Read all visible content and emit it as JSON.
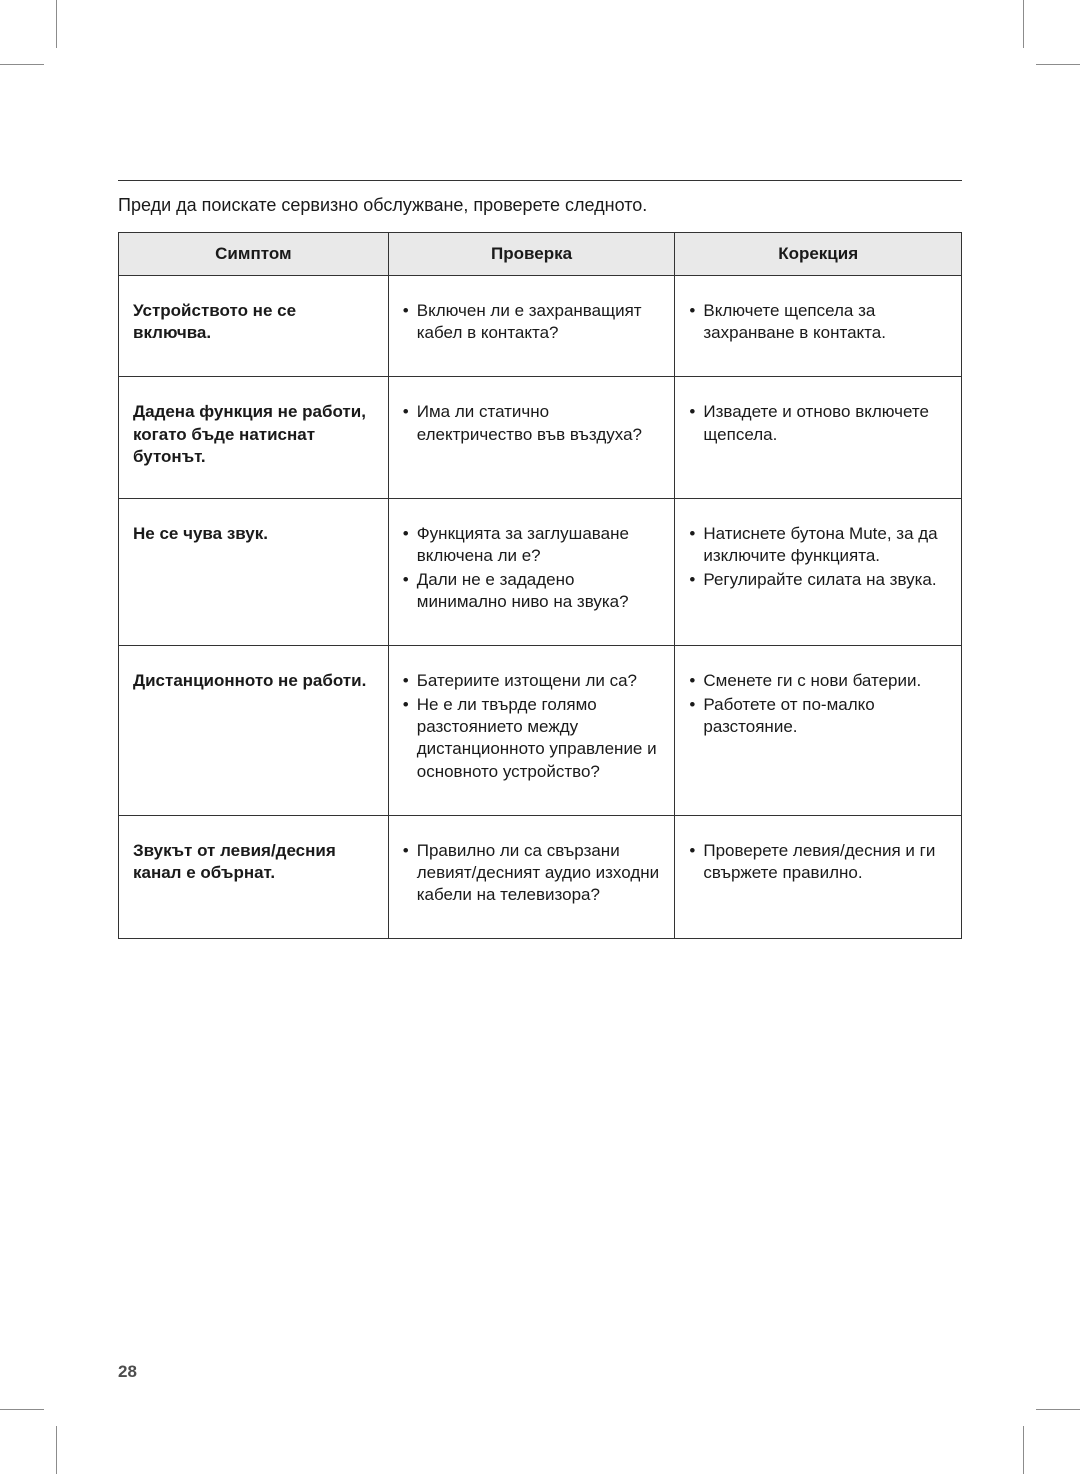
{
  "page": {
    "number": "28",
    "intro": "Преди да поискате сервизно обслужване, проверете следното."
  },
  "colors": {
    "header_bg": "#e9e9e9",
    "border": "#333333",
    "text": "#1a1a1a",
    "page_number": "#4d4d4d",
    "crop_mark": "#8c8c8c",
    "background": "#ffffff"
  },
  "typography": {
    "body_fontsize_pt": 12,
    "header_font_weight": "700",
    "symptom_font_weight": "700"
  },
  "table": {
    "column_widths_percent": [
      32,
      34,
      34
    ],
    "columns": [
      "Симптом",
      "Проверка",
      "Корекция"
    ],
    "rows": [
      {
        "symptom": "Устройството не се включва.",
        "check": [
          "Включен ли е захранващият кабел в контакта?"
        ],
        "fix": [
          "Включете щепсела за захранване в контакта."
        ]
      },
      {
        "symptom": "Дадена функция не работи, когато бъде натиснат бутонът.",
        "check": [
          "Има ли статично електричество във въздуха?"
        ],
        "fix": [
          "Извадете и отново включете щепсела."
        ]
      },
      {
        "symptom": "Не се чува звук.",
        "check": [
          "Функцията за заглушаване включена ли е?",
          "Дали не е зададено минимално ниво на звука?"
        ],
        "fix": [
          "Натиснете бутона Mute, за да изключите функцията.",
          "Регулирайте силата на звука."
        ]
      },
      {
        "symptom": "Дистанционното не работи.",
        "check": [
          "Батериите изтощени ли са?",
          "Не е ли твърде голямо разстоянието между дистанционното управление и основното устройство?"
        ],
        "fix": [
          "Сменете ги с нови батерии.",
          "Работете от по-малко разстояние."
        ]
      },
      {
        "symptom": "Звукът от левия/десния канал е обърнат.",
        "check": [
          "Правилно ли са свързани левият/десният аудио изходни кабели на телевизора?"
        ],
        "fix": [
          "Проверете левия/десния и ги свържете правилно."
        ]
      }
    ]
  }
}
